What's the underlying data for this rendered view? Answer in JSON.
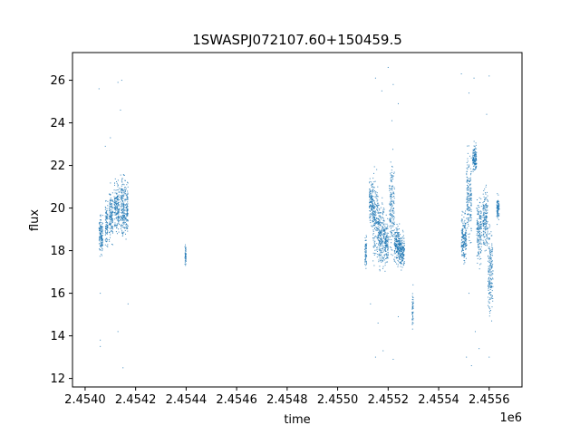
{
  "chart_data": {
    "type": "scatter",
    "title": "1SWASPJ072107.60+150459.5",
    "xlabel": "time",
    "ylabel": "flux",
    "x_offset_label": "1e6",
    "xlim": [
      2453950,
      2455730
    ],
    "ylim": [
      11.6,
      27.3
    ],
    "x_ticks": [
      2454000,
      2454200,
      2454400,
      2454600,
      2454800,
      2455000,
      2455200,
      2455400,
      2455600
    ],
    "x_tick_labels": [
      "2.4540",
      "2.4542",
      "2.4544",
      "2.4546",
      "2.4548",
      "2.4550",
      "2.4552",
      "2.4554",
      "2.4556"
    ],
    "y_ticks": [
      12,
      14,
      16,
      18,
      20,
      22,
      24,
      26
    ],
    "y_tick_labels": [
      "12",
      "14",
      "16",
      "18",
      "20",
      "22",
      "24",
      "26"
    ],
    "grid": false,
    "marker_color": "#1f77b4",
    "segments": [
      {
        "x_start": 2454055,
        "x_end": 2454070,
        "y_center": 18.7,
        "y_spread": 0.6
      },
      {
        "x_start": 2454080,
        "x_end": 2454090,
        "y_center": 19.3,
        "y_spread": 0.7
      },
      {
        "x_start": 2454095,
        "x_end": 2454110,
        "y_center": 19.7,
        "y_spread": 0.8
      },
      {
        "x_start": 2454115,
        "x_end": 2454135,
        "y_center": 20.0,
        "y_spread": 0.8
      },
      {
        "x_start": 2454140,
        "x_end": 2454170,
        "y_center": 20.0,
        "y_spread": 0.9
      },
      {
        "x_start": 2454395,
        "x_end": 2454400,
        "y_center": 17.8,
        "y_spread": 0.3
      },
      {
        "x_start": 2455108,
        "x_end": 2455115,
        "y_center": 18.0,
        "y_spread": 0.6
      },
      {
        "x_start": 2455125,
        "x_end": 2455140,
        "y_center": 20.3,
        "y_spread": 0.8
      },
      {
        "x_start": 2455140,
        "x_end": 2455160,
        "y_center": 19.5,
        "y_spread": 1.2
      },
      {
        "x_start": 2455160,
        "x_end": 2455185,
        "y_center": 18.8,
        "y_spread": 1.0
      },
      {
        "x_start": 2455185,
        "x_end": 2455200,
        "y_center": 18.3,
        "y_spread": 0.7
      },
      {
        "x_start": 2455205,
        "x_end": 2455225,
        "y_center": 20.0,
        "y_spread": 1.4
      },
      {
        "x_start": 2455225,
        "x_end": 2455245,
        "y_center": 18.3,
        "y_spread": 0.6
      },
      {
        "x_start": 2455245,
        "x_end": 2455265,
        "y_center": 18.0,
        "y_spread": 0.5
      },
      {
        "x_start": 2455295,
        "x_end": 2455300,
        "y_center": 15.2,
        "y_spread": 0.6
      },
      {
        "x_start": 2455490,
        "x_end": 2455510,
        "y_center": 18.6,
        "y_spread": 0.8
      },
      {
        "x_start": 2455510,
        "x_end": 2455530,
        "y_center": 20.5,
        "y_spread": 1.4
      },
      {
        "x_start": 2455535,
        "x_end": 2455550,
        "y_center": 22.3,
        "y_spread": 0.4
      },
      {
        "x_start": 2455550,
        "x_end": 2455570,
        "y_center": 19.0,
        "y_spread": 1.0
      },
      {
        "x_start": 2455575,
        "x_end": 2455595,
        "y_center": 19.5,
        "y_spread": 1.0
      },
      {
        "x_start": 2455595,
        "x_end": 2455615,
        "y_center": 17.0,
        "y_spread": 1.3
      },
      {
        "x_start": 2455630,
        "x_end": 2455640,
        "y_center": 20.0,
        "y_spread": 0.4
      }
    ],
    "outliers": [
      [
        2454055,
        25.6
      ],
      [
        2454130,
        25.9
      ],
      [
        2454145,
        26.0
      ],
      [
        2454140,
        24.6
      ],
      [
        2454100,
        23.3
      ],
      [
        2454080,
        22.9
      ],
      [
        2454060,
        13.5
      ],
      [
        2454060,
        13.8
      ],
      [
        2454150,
        12.5
      ],
      [
        2454170,
        15.5
      ],
      [
        2454130,
        14.2
      ],
      [
        2454060,
        16.0
      ],
      [
        2455150,
        26.1
      ],
      [
        2455200,
        26.6
      ],
      [
        2455220,
        25.8
      ],
      [
        2455240,
        24.9
      ],
      [
        2455175,
        25.5
      ],
      [
        2455215,
        24.1
      ],
      [
        2455150,
        13.0
      ],
      [
        2455180,
        13.3
      ],
      [
        2455220,
        12.9
      ],
      [
        2455160,
        14.6
      ],
      [
        2455240,
        14.9
      ],
      [
        2455130,
        15.5
      ],
      [
        2455490,
        26.3
      ],
      [
        2455540,
        26.1
      ],
      [
        2455600,
        26.2
      ],
      [
        2455520,
        25.4
      ],
      [
        2455590,
        24.4
      ],
      [
        2455510,
        13.0
      ],
      [
        2455530,
        12.6
      ],
      [
        2455560,
        13.4
      ],
      [
        2455600,
        13.0
      ],
      [
        2455545,
        14.2
      ],
      [
        2455610,
        14.7
      ],
      [
        2455520,
        16.0
      ]
    ]
  }
}
